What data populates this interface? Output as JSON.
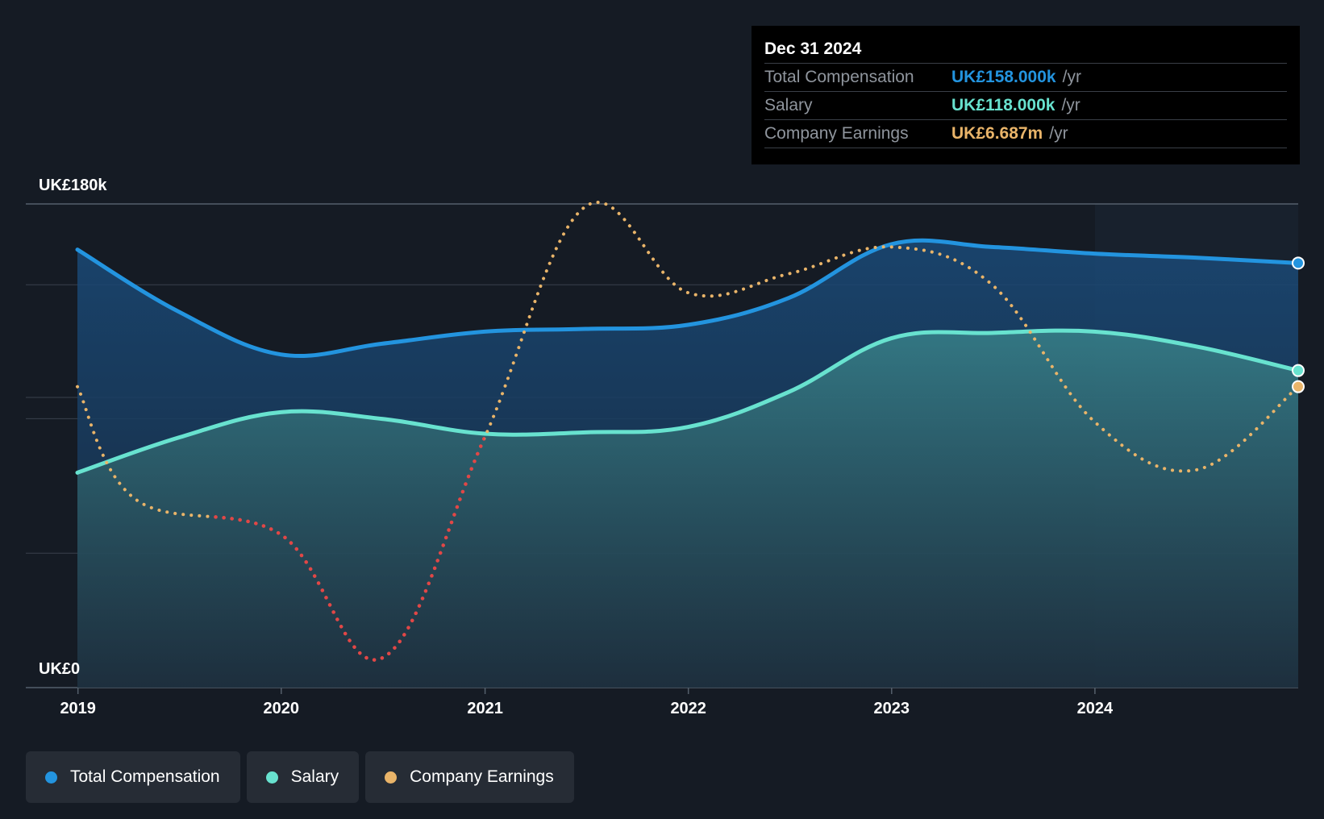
{
  "colors": {
    "background": "#151b24",
    "total_compensation": "#2394df",
    "salary": "#68e2cf",
    "company_earnings": "#e9b469",
    "company_earnings_negative": "#e24646",
    "gridline": "#39414c"
  },
  "tooltip": {
    "date": "Dec 31 2024",
    "rows": [
      {
        "label": "Total Compensation",
        "value": "UK£158.000k",
        "unit": "/yr"
      },
      {
        "label": "Salary",
        "value": "UK£118.000k",
        "unit": "/yr"
      },
      {
        "label": "Company Earnings",
        "value": "UK£6.687m",
        "unit": "/yr"
      }
    ]
  },
  "legend": [
    {
      "label": "Total Compensation",
      "color": "#2394df"
    },
    {
      "label": "Salary",
      "color": "#68e2cf"
    },
    {
      "label": "Company Earnings",
      "color": "#e9b469"
    }
  ],
  "chart_data": {
    "type": "line",
    "y_axis_labels": [
      "UK£180k",
      "UK£0"
    ],
    "ylim": [
      0,
      180000
    ],
    "xlim": [
      "2018-12-31",
      "2024-12-31"
    ],
    "x_ticks": [
      "2019",
      "2020",
      "2021",
      "2022",
      "2023",
      "2024"
    ],
    "grid": true,
    "highlight_from": "2024-01-01",
    "legend_position": "bottom-left",
    "series": [
      {
        "name": "Total Compensation",
        "style": "solid-area",
        "points": [
          [
            "2018-12-31",
            163000
          ],
          [
            "2019-06-30",
            140000
          ],
          [
            "2019-12-31",
            124000
          ],
          [
            "2020-06-30",
            128000
          ],
          [
            "2020-12-31",
            132500
          ],
          [
            "2021-06-30",
            133500
          ],
          [
            "2021-12-31",
            135000
          ],
          [
            "2022-06-30",
            145000
          ],
          [
            "2022-12-31",
            165000
          ],
          [
            "2023-06-30",
            164000
          ],
          [
            "2023-12-31",
            161500
          ],
          [
            "2024-06-30",
            160000
          ],
          [
            "2024-12-31",
            158000
          ]
        ]
      },
      {
        "name": "Salary",
        "style": "solid-area",
        "points": [
          [
            "2018-12-31",
            80000
          ],
          [
            "2019-06-30",
            93000
          ],
          [
            "2019-12-31",
            102500
          ],
          [
            "2020-06-30",
            100000
          ],
          [
            "2020-12-31",
            94500
          ],
          [
            "2021-06-30",
            95000
          ],
          [
            "2021-12-31",
            97000
          ],
          [
            "2022-06-30",
            110000
          ],
          [
            "2022-12-31",
            130000
          ],
          [
            "2023-06-30",
            132000
          ],
          [
            "2023-12-31",
            132500
          ],
          [
            "2024-06-30",
            127000
          ],
          [
            "2024-12-31",
            118000
          ]
        ]
      },
      {
        "name": "Company Earnings",
        "style": "dotted",
        "negative_segments_color": "#e24646",
        "points": [
          [
            "2018-12-31",
            112000
          ],
          [
            "2019-04-15",
            70000
          ],
          [
            "2019-12-31",
            57000
          ],
          [
            "2020-06-30",
            11000
          ],
          [
            "2020-12-31",
            93000
          ],
          [
            "2021-06-30",
            179000
          ],
          [
            "2021-12-31",
            147000
          ],
          [
            "2022-06-30",
            154000
          ],
          [
            "2022-12-31",
            164000
          ],
          [
            "2023-06-30",
            150000
          ],
          [
            "2023-12-31",
            99000
          ],
          [
            "2024-06-30",
            81000
          ],
          [
            "2024-12-31",
            112000
          ]
        ]
      }
    ]
  }
}
